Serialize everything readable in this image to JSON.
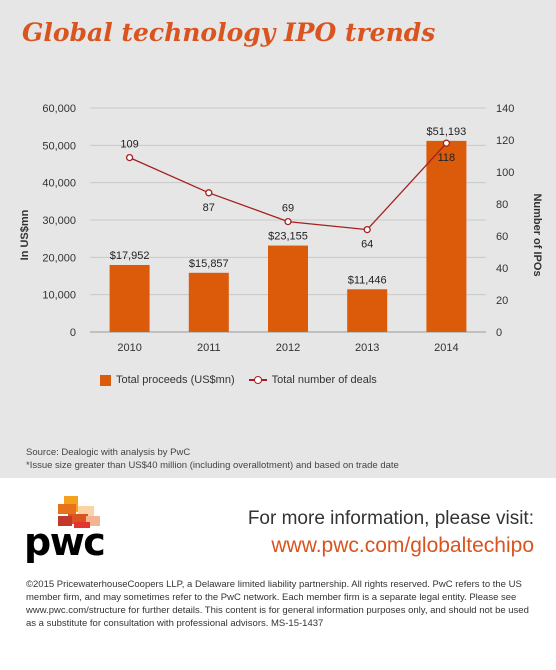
{
  "title": "Global technology IPO trends",
  "chart_data": {
    "type": "bar+line",
    "categories": [
      "2010",
      "2011",
      "2012",
      "2013",
      "2014"
    ],
    "series": [
      {
        "name": "Total proceeds (US$mn)",
        "type": "bar",
        "axis": "left",
        "color": "#db5b0b",
        "values": [
          17952,
          15857,
          23155,
          11446,
          51193
        ],
        "labels": [
          "$17,952",
          "$15,857",
          "$23,155",
          "$11,446",
          "$51,193"
        ]
      },
      {
        "name": "Total number of deals",
        "type": "line",
        "axis": "right",
        "color": "#a32020",
        "values": [
          109,
          87,
          69,
          64,
          118
        ],
        "labels": [
          "109",
          "87",
          "69",
          "64",
          "118"
        ]
      }
    ],
    "ylabel": "In US$mn",
    "y2label": "Number of IPOs",
    "ylim": [
      0,
      60000
    ],
    "y2lim": [
      0,
      140
    ],
    "yticks": [
      "0",
      "10,000",
      "20,000",
      "30,000",
      "40,000",
      "50,000",
      "60,000"
    ],
    "y2ticks": [
      "0",
      "20",
      "40",
      "60",
      "80",
      "100",
      "120",
      "140"
    ],
    "grid": true,
    "legend": "bottom"
  },
  "source": {
    "line1": "Source: Dealogic with analysis by PwC",
    "line2": "*Issue size greater than US$40 million (including overallotment) and based on trade date"
  },
  "footer": {
    "logo_text": "pwc",
    "visit_text": "For more information, please visit:",
    "url": "www.pwc.com/globaltechipo",
    "copyright": "©2015 PricewaterhouseCoopers LLP, a Delaware limited liability partnership. All rights reserved. PwC refers to the US member firm, and may sometimes refer to the PwC network. Each member firm is a separate legal entity. Please see www.pwc.com/structure for further details. This content is for general information purposes only, and should not be used as a substitute for consultation with professional advisors. MS-15-1437"
  }
}
